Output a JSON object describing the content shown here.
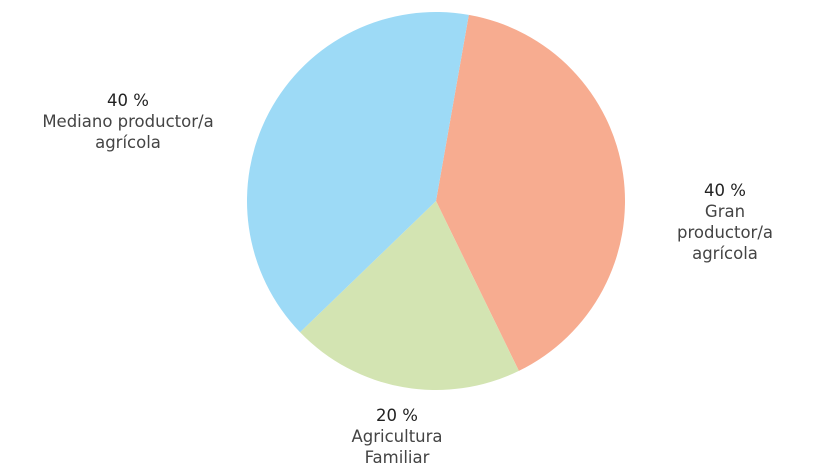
{
  "chart_data": {
    "type": "pie",
    "start_angle": 10,
    "categories": [
      "Gran productor/a\nagrícola",
      "Agricultura\nFamiliar",
      "Mediano productor/a\nagrícola"
    ],
    "values": [
      40,
      20,
      40
    ],
    "value_labels": [
      "40 %",
      "20 %",
      "40 %"
    ],
    "colors": [
      "#f7ac90",
      "#d3e4b2",
      "#9ddaf6"
    ]
  }
}
